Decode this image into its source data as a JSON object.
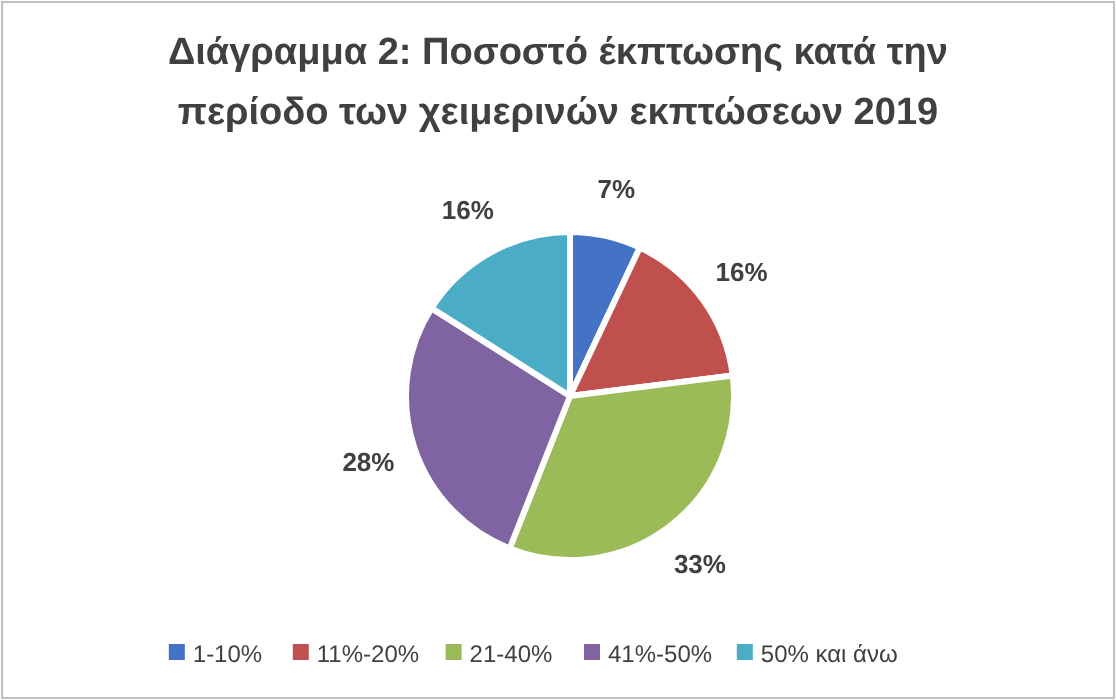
{
  "chart_data": {
    "type": "pie",
    "title": "Διάγραμμα 2: Ποσοστό έκπτωσης κατά την περίοδο των χειμερινών εκπτώσεων 2019",
    "categories": [
      "1-10%",
      "11%-20%",
      "21-40%",
      "41%-50%",
      "50% και άνω"
    ],
    "values": [
      7,
      16,
      33,
      28,
      16
    ],
    "colors": [
      "#4472c4",
      "#c0504d",
      "#9bbb59",
      "#8064a2",
      "#4bacc6"
    ],
    "value_labels": [
      "7%",
      "16%",
      "33%",
      "28%",
      "16%"
    ],
    "legend": "bottom"
  }
}
